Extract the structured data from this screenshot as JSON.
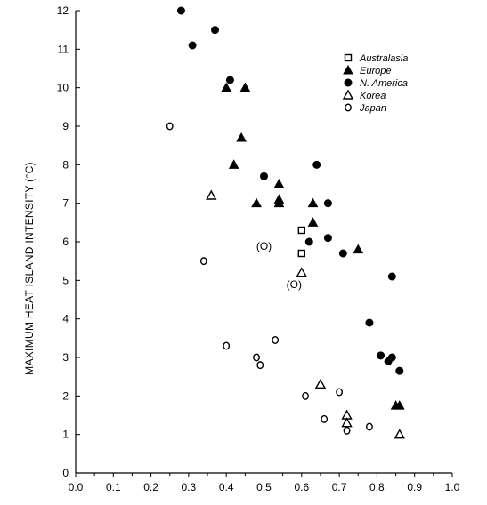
{
  "chart_data": {
    "type": "scatter",
    "title": "",
    "xlabel": "",
    "ylabel": "MAXIMUM HEAT ISLAND INTENSITY (°C)",
    "xlim": [
      0.0,
      1.0
    ],
    "ylim": [
      0,
      12
    ],
    "x_ticks": [
      "0.0",
      "0.1",
      "0.2",
      "0.3",
      "0.4",
      "0.5",
      "0.6",
      "0.7",
      "0.8",
      "0.9",
      "1.0"
    ],
    "y_ticks": [
      "0",
      "1",
      "2",
      "3",
      "4",
      "5",
      "6",
      "7",
      "8",
      "9",
      "10",
      "11",
      "12"
    ],
    "grid": false,
    "legend_position": "top-right",
    "series": [
      {
        "name": "Australasia",
        "marker": "open-square",
        "points": [
          [
            0.6,
            6.3
          ],
          [
            0.6,
            5.7
          ]
        ]
      },
      {
        "name": "Europe",
        "marker": "filled-triangle",
        "points": [
          [
            0.4,
            10.0
          ],
          [
            0.45,
            10.0
          ],
          [
            0.44,
            8.7
          ],
          [
            0.42,
            8.0
          ],
          [
            0.54,
            7.5
          ],
          [
            0.54,
            7.1
          ],
          [
            0.48,
            7.0
          ],
          [
            0.54,
            7.0
          ],
          [
            0.63,
            7.0
          ],
          [
            0.63,
            6.5
          ],
          [
            0.75,
            5.8
          ],
          [
            0.85,
            1.75
          ],
          [
            0.86,
            1.75
          ]
        ]
      },
      {
        "name": "N. America",
        "marker": "filled-circle",
        "points": [
          [
            0.28,
            12.0
          ],
          [
            0.31,
            11.1
          ],
          [
            0.37,
            11.5
          ],
          [
            0.41,
            10.2
          ],
          [
            0.5,
            7.7
          ],
          [
            0.64,
            8.0
          ],
          [
            0.67,
            7.0
          ],
          [
            0.62,
            6.0
          ],
          [
            0.67,
            6.1
          ],
          [
            0.71,
            5.7
          ],
          [
            0.84,
            5.1
          ],
          [
            0.78,
            3.9
          ],
          [
            0.81,
            3.05
          ],
          [
            0.83,
            2.9
          ],
          [
            0.84,
            3.0
          ],
          [
            0.86,
            2.65
          ]
        ]
      },
      {
        "name": "Korea",
        "marker": "open-triangle",
        "points": [
          [
            0.36,
            7.2
          ],
          [
            0.6,
            5.2
          ],
          [
            0.65,
            2.3
          ],
          [
            0.72,
            1.5
          ],
          [
            0.72,
            1.3
          ],
          [
            0.86,
            1.0
          ]
        ]
      },
      {
        "name": "Japan",
        "marker": "open-circle",
        "points": [
          [
            0.25,
            9.0
          ],
          [
            0.34,
            5.5
          ],
          [
            0.4,
            3.3
          ],
          [
            0.48,
            3.0
          ],
          [
            0.49,
            2.8
          ],
          [
            0.53,
            3.45
          ],
          [
            0.61,
            2.0
          ],
          [
            0.66,
            1.4
          ],
          [
            0.7,
            2.1
          ],
          [
            0.72,
            1.1
          ],
          [
            0.78,
            1.2
          ]
        ]
      }
    ],
    "annotations": [
      {
        "text": "(O)",
        "x": 0.5,
        "y": 5.9
      },
      {
        "text": "(O)",
        "x": 0.58,
        "y": 4.9
      }
    ]
  },
  "legend": {
    "items": [
      {
        "label": "Australasia",
        "marker": "open-square"
      },
      {
        "label": "Europe",
        "marker": "filled-triangle"
      },
      {
        "label": "N. America",
        "marker": "filled-circle"
      },
      {
        "label": "Korea",
        "marker": "open-triangle"
      },
      {
        "label": "Japan",
        "marker": "open-circle"
      }
    ]
  }
}
